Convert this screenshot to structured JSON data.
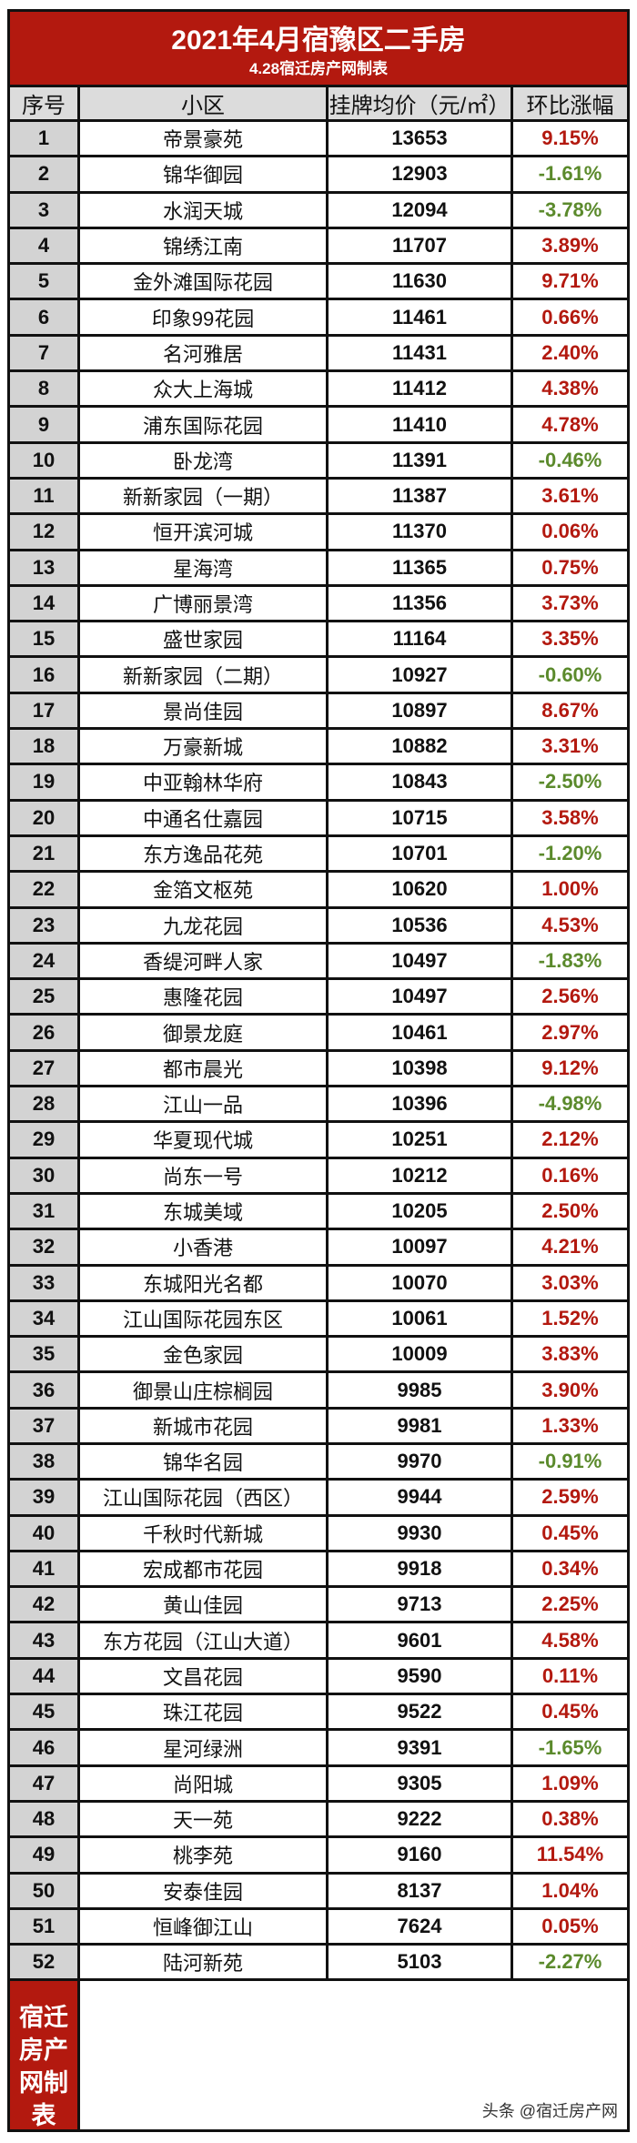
{
  "title": "2021年4月宿豫区二手房",
  "subtitle": "4.28宿迁房产网制表",
  "headers": [
    "序号",
    "小区",
    "挂牌均价（元/㎡）",
    "环比涨幅"
  ],
  "colors": {
    "header_red": "#b3190f",
    "increase": "#b3190f",
    "decrease": "#5b8a2c"
  },
  "rows": [
    [
      "1",
      "帝景豪苑",
      "13653",
      "9.15%"
    ],
    [
      "2",
      "锦华御园",
      "12903",
      "-1.61%"
    ],
    [
      "3",
      "水润天城",
      "12094",
      "-3.78%"
    ],
    [
      "4",
      "锦绣江南",
      "11707",
      "3.89%"
    ],
    [
      "5",
      "金外滩国际花园",
      "11630",
      "9.71%"
    ],
    [
      "6",
      "印象99花园",
      "11461",
      "0.66%"
    ],
    [
      "7",
      "名河雅居",
      "11431",
      "2.40%"
    ],
    [
      "8",
      "众大上海城",
      "11412",
      "4.38%"
    ],
    [
      "9",
      "浦东国际花园",
      "11410",
      "4.78%"
    ],
    [
      "10",
      "卧龙湾",
      "11391",
      "-0.46%"
    ],
    [
      "11",
      "新新家园（一期）",
      "11387",
      "3.61%"
    ],
    [
      "12",
      "恒开滨河城",
      "11370",
      "0.06%"
    ],
    [
      "13",
      "星海湾",
      "11365",
      "0.75%"
    ],
    [
      "14",
      "广博丽景湾",
      "11356",
      "3.73%"
    ],
    [
      "15",
      "盛世家园",
      "11164",
      "3.35%"
    ],
    [
      "16",
      "新新家园（二期）",
      "10927",
      "-0.60%"
    ],
    [
      "17",
      "景尚佳园",
      "10897",
      "8.67%"
    ],
    [
      "18",
      "万豪新城",
      "10882",
      "3.31%"
    ],
    [
      "19",
      "中亚翰林华府",
      "10843",
      "-2.50%"
    ],
    [
      "20",
      "中通名仕嘉园",
      "10715",
      "3.58%"
    ],
    [
      "21",
      "东方逸品花苑",
      "10701",
      "-1.20%"
    ],
    [
      "22",
      "金箔文枢苑",
      "10620",
      "1.00%"
    ],
    [
      "23",
      "九龙花园",
      "10536",
      "4.53%"
    ],
    [
      "24",
      "香缇河畔人家",
      "10497",
      "-1.83%"
    ],
    [
      "25",
      "惠隆花园",
      "10497",
      "2.56%"
    ],
    [
      "26",
      "御景龙庭",
      "10461",
      "2.97%"
    ],
    [
      "27",
      "都市晨光",
      "10398",
      "9.12%"
    ],
    [
      "28",
      "江山一品",
      "10396",
      "-4.98%"
    ],
    [
      "29",
      "华夏现代城",
      "10251",
      "2.12%"
    ],
    [
      "30",
      "尚东一号",
      "10212",
      "0.16%"
    ],
    [
      "31",
      "东城美域",
      "10205",
      "2.50%"
    ],
    [
      "32",
      "小香港",
      "10097",
      "4.21%"
    ],
    [
      "33",
      "东城阳光名都",
      "10070",
      "3.03%"
    ],
    [
      "34",
      "江山国际花园东区",
      "10061",
      "1.52%"
    ],
    [
      "35",
      "金色家园",
      "10009",
      "3.83%"
    ],
    [
      "36",
      "御景山庄棕榈园",
      "9985",
      "3.90%"
    ],
    [
      "37",
      "新城市花园",
      "9981",
      "1.33%"
    ],
    [
      "38",
      "锦华名园",
      "9970",
      "-0.91%"
    ],
    [
      "39",
      "江山国际花园（西区）",
      "9944",
      "2.59%"
    ],
    [
      "40",
      "千秋时代新城",
      "9930",
      "0.45%"
    ],
    [
      "41",
      "宏成都市花园",
      "9918",
      "0.34%"
    ],
    [
      "42",
      "黄山佳园",
      "9713",
      "2.25%"
    ],
    [
      "43",
      "东方花园（江山大道）",
      "9601",
      "4.58%"
    ],
    [
      "44",
      "文昌花园",
      "9590",
      "0.11%"
    ],
    [
      "45",
      "珠江花园",
      "9522",
      "0.45%"
    ],
    [
      "46",
      "星河绿洲",
      "9391",
      "-1.65%"
    ],
    [
      "47",
      "尚阳城",
      "9305",
      "1.09%"
    ],
    [
      "48",
      "天一苑",
      "9222",
      "0.38%"
    ],
    [
      "49",
      "桃李苑",
      "9160",
      "11.54%"
    ],
    [
      "50",
      "安泰佳园",
      "8137",
      "1.04%"
    ],
    [
      "51",
      "恒峰御江山",
      "7624",
      "0.05%"
    ],
    [
      "52",
      "陆河新苑",
      "5103",
      "-2.27%"
    ]
  ],
  "footer": {
    "label_lines": [
      "宿迁",
      "房产",
      "网制",
      "表"
    ],
    "watermark": "头条 @宿迁房产网"
  }
}
